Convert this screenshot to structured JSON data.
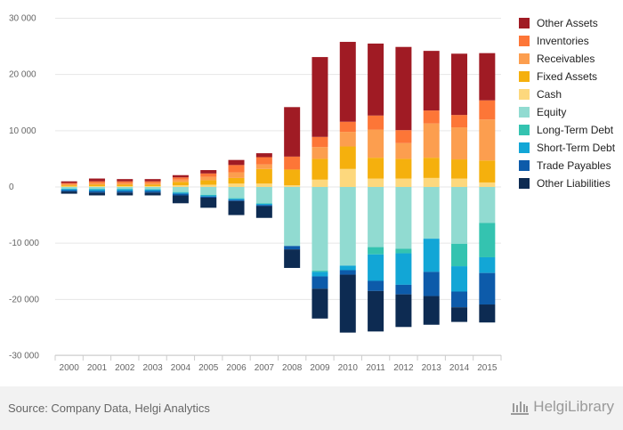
{
  "chart_data": {
    "type": "bar",
    "stacked": true,
    "categories": [
      "2000",
      "2001",
      "2002",
      "2003",
      "2004",
      "2005",
      "2006",
      "2007",
      "2008",
      "2009",
      "2010",
      "2011",
      "2012",
      "2013",
      "2014",
      "2015"
    ],
    "ylim": [
      -30000,
      30000
    ],
    "yticks": [
      30000,
      20000,
      10000,
      0,
      -10000,
      -20000,
      -30000
    ],
    "ytick_labels": [
      "30 000",
      "20 000",
      "10 000",
      "0",
      "-10 000",
      "-20 000",
      "-30 000"
    ],
    "grid": true,
    "legend_position": "right",
    "positive_series": [
      {
        "name": "Cash",
        "color": "#fdd87d",
        "values": [
          100,
          150,
          150,
          150,
          300,
          400,
          600,
          600,
          300,
          1300,
          3200,
          1500,
          1500,
          1600,
          1500,
          800
        ]
      },
      {
        "name": "Fixed Assets",
        "color": "#f5b00d",
        "values": [
          200,
          250,
          250,
          250,
          600,
          800,
          1000,
          2600,
          2800,
          3700,
          4000,
          3700,
          3500,
          3600,
          3400,
          3900
        ]
      },
      {
        "name": "Receivables",
        "color": "#fc9e4f",
        "values": [
          200,
          300,
          300,
          300,
          400,
          600,
          1000,
          800,
          0,
          2100,
          2600,
          5000,
          2800,
          6100,
          5700,
          7300
        ]
      },
      {
        "name": "Inventories",
        "color": "#fd7637",
        "values": [
          200,
          300,
          300,
          300,
          400,
          600,
          1300,
          1300,
          2300,
          1800,
          1800,
          2500,
          2300,
          2300,
          2200,
          3400
        ]
      },
      {
        "name": "Other Assets",
        "color": "#a01b24",
        "values": [
          300,
          500,
          400,
          400,
          400,
          600,
          900,
          700,
          8800,
          14200,
          14200,
          12800,
          14800,
          10600,
          10900,
          8400
        ]
      }
    ],
    "negative_series": [
      {
        "name": "Equity",
        "color": "#91dbd1",
        "values": [
          -300,
          -350,
          -350,
          -400,
          -900,
          -1400,
          -2000,
          -2900,
          -10500,
          -14900,
          -14000,
          -10700,
          -11000,
          -9200,
          -10100,
          -6400
        ]
      },
      {
        "name": "Long-Term Debt",
        "color": "#34c3b0",
        "values": [
          -50,
          -50,
          -50,
          -50,
          -100,
          -100,
          -100,
          -100,
          0,
          -200,
          0,
          -1300,
          -800,
          0,
          -4000,
          -6100
        ]
      },
      {
        "name": "Short-Term Debt",
        "color": "#12a6d6",
        "values": [
          -200,
          -300,
          -300,
          -250,
          -200,
          -200,
          -200,
          -200,
          0,
          -800,
          -800,
          -4700,
          -5600,
          -5900,
          -4500,
          -2800
        ]
      },
      {
        "name": "Trade Payables",
        "color": "#0d5baa",
        "values": [
          -250,
          -300,
          -300,
          -300,
          -300,
          -200,
          -200,
          -200,
          -600,
          -2200,
          -800,
          -1800,
          -1700,
          -4300,
          -2800,
          -5600
        ]
      },
      {
        "name": "Other Liabilities",
        "color": "#0d2b52",
        "values": [
          -400,
          -500,
          -500,
          -500,
          -1400,
          -1800,
          -2500,
          -2100,
          -3300,
          -5300,
          -10300,
          -7200,
          -5800,
          -5100,
          -2600,
          -3200
        ]
      }
    ]
  },
  "legend": [
    {
      "label": "Other Assets",
      "color": "#a01b24"
    },
    {
      "label": "Inventories",
      "color": "#fd7637"
    },
    {
      "label": "Receivables",
      "color": "#fc9e4f"
    },
    {
      "label": "Fixed Assets",
      "color": "#f5b00d"
    },
    {
      "label": "Cash",
      "color": "#fdd87d"
    },
    {
      "label": "Equity",
      "color": "#91dbd1"
    },
    {
      "label": "Long-Term Debt",
      "color": "#34c3b0"
    },
    {
      "label": "Short-Term Debt",
      "color": "#12a6d6"
    },
    {
      "label": "Trade Payables",
      "color": "#0d5baa"
    },
    {
      "label": "Other Liabilities",
      "color": "#0d2b52"
    }
  ],
  "footer": {
    "source": "Source: Company Data, Helgi Analytics",
    "logo_text": "HelgiLibrary"
  }
}
